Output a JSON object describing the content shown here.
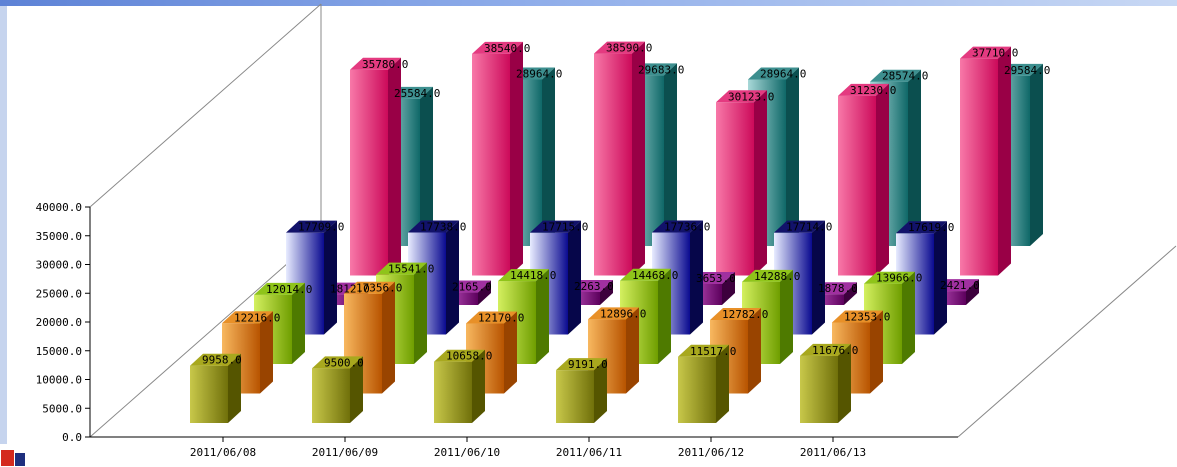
{
  "window": {
    "top_edge_color": "#5d82d6",
    "left_edge_color": "#c6d4ee",
    "background_fragment_red": "#d42a1e",
    "background_fragment_blue": "#1e2f7e"
  },
  "chart_data": {
    "type": "bar",
    "projection": "3d",
    "title": "",
    "legend": "none",
    "grid": false,
    "value_label_format": "0.0 suffix decimal",
    "categories": [
      "2011/06/08",
      "2011/06/09",
      "2011/06/10",
      "2011/06/11",
      "2011/06/12",
      "2011/06/13"
    ],
    "y_axis": {
      "min": 0,
      "max": 40000,
      "ticks": [
        "0.0",
        "5000.0",
        "10000.0",
        "15000.0",
        "20000.0",
        "25000.0",
        "30000.0",
        "35000.0",
        "40000.0"
      ]
    },
    "series": [
      {
        "name": "dark-yellow",
        "values": [
          9958.0,
          9500.0,
          10658.0,
          9191.0,
          11517.0,
          11676.0
        ],
        "front_light": "#c8c84a",
        "front_dark": "#70700a",
        "top": "#a8a81e",
        "side": "#555500"
      },
      {
        "name": "orange",
        "values": [
          12216.0,
          17356.0,
          12170.0,
          12896.0,
          12782.0,
          12353.0
        ],
        "front_light": "#f8b860",
        "front_dark": "#b85400",
        "top": "#e89028",
        "side": "#994400"
      },
      {
        "name": "yellow-green",
        "values": [
          12014.0,
          15541.0,
          14418.0,
          14468.0,
          14288.0,
          13966.0
        ],
        "front_light": "#d4f060",
        "front_dark": "#6f9e00",
        "top": "#8fc41a",
        "side": "#4e7a00"
      },
      {
        "name": "navy-blue",
        "values": [
          17709.0,
          17738.0,
          17715.0,
          17736.0,
          17714.0,
          17619.0
        ],
        "front_light": "#e8ecff",
        "front_dark": "#0a0a90",
        "top": "#12126a",
        "side": "#06064a"
      },
      {
        "name": "purple",
        "values": [
          1812.0,
          2165.0,
          2263.0,
          3653.0,
          1878.0,
          2421.0
        ],
        "front_light": "#d060d0",
        "front_dark": "#5c005c",
        "top": "#a030a0",
        "side": "#3d003d"
      },
      {
        "name": "crimson-pink",
        "values": [
          35780.0,
          38540.0,
          38590.0,
          30123.0,
          31230.0,
          37710.0
        ],
        "front_light": "#f878a8",
        "front_dark": "#cc0a5a",
        "top": "#e43a80",
        "side": "#990046"
      },
      {
        "name": "teal",
        "values": [
          25584.0,
          28964.0,
          29683.0,
          28964.0,
          28574.0,
          29584.0
        ],
        "front_light": "#a8d8d8",
        "front_dark": "#0f6868",
        "top": "#3d8f8f",
        "side": "#0b4f4f"
      }
    ]
  }
}
